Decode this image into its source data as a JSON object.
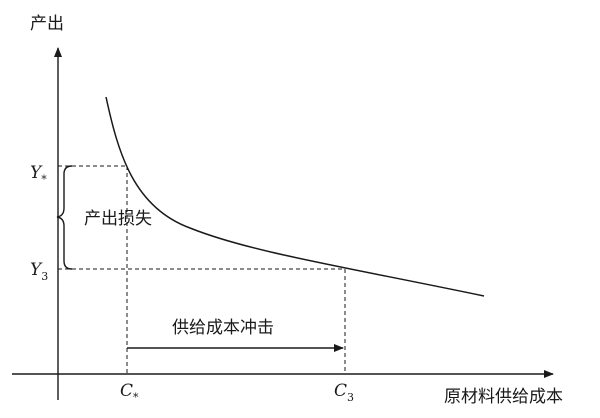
{
  "axes": {
    "y_label": "产出",
    "x_label": "原材料供给成本"
  },
  "ticks": {
    "y_high_main": "Y",
    "y_high_sub": "*",
    "y_low_main": "Y",
    "y_low_sub": "3",
    "x_left_main": "C",
    "x_left_sub": "*",
    "x_right_main": "C",
    "x_right_sub": "3"
  },
  "annotations": {
    "loss_label": "产出损失",
    "shock_label": "供给成本冲击"
  },
  "colors": {
    "ink": "#1a1a1a"
  },
  "icons": {
    "brace": "left-curly-brace",
    "arrow": "right-arrow"
  }
}
